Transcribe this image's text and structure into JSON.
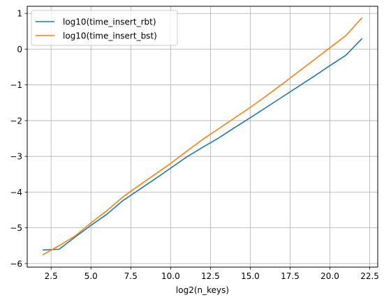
{
  "chart_data": {
    "type": "line",
    "title": "",
    "xlabel": "log2(n_keys)",
    "ylabel": "",
    "xlim": [
      1.0,
      23.0
    ],
    "ylim": [
      -6.1,
      1.2
    ],
    "xticks": [
      2.5,
      5.0,
      7.5,
      10.0,
      12.5,
      15.0,
      17.5,
      20.0,
      22.5
    ],
    "xtick_labels": [
      "2.5",
      "5.0",
      "7.5",
      "10.0",
      "12.5",
      "15.0",
      "17.5",
      "20.0",
      "22.5"
    ],
    "yticks": [
      -6,
      -5,
      -4,
      -3,
      -2,
      -1,
      0,
      1
    ],
    "ytick_labels": [
      "−6",
      "−5",
      "−4",
      "−3",
      "−2",
      "−1",
      "0",
      "1"
    ],
    "grid": true,
    "legend_position": "top-left",
    "x": [
      2,
      3,
      4,
      5,
      6,
      7,
      8,
      9,
      10,
      11,
      12,
      13,
      14,
      15,
      16,
      17,
      18,
      19,
      20,
      21,
      22
    ],
    "series": [
      {
        "name": "log10(time_insert_rbt)",
        "color": "#1f77b4",
        "values": [
          -5.62,
          -5.6,
          -5.26,
          -4.93,
          -4.62,
          -4.24,
          -3.94,
          -3.64,
          -3.33,
          -3.02,
          -2.75,
          -2.49,
          -2.2,
          -1.92,
          -1.63,
          -1.34,
          -1.05,
          -0.76,
          -0.46,
          -0.17,
          0.29
        ]
      },
      {
        "name": "log10(time_insert_bst)",
        "color": "#ff7f0e",
        "values": [
          -5.75,
          -5.5,
          -5.23,
          -4.86,
          -4.52,
          -4.14,
          -3.82,
          -3.51,
          -3.2,
          -2.86,
          -2.53,
          -2.23,
          -1.93,
          -1.63,
          -1.31,
          -0.98,
          -0.64,
          -0.3,
          0.04,
          0.38,
          0.87
        ]
      }
    ]
  }
}
